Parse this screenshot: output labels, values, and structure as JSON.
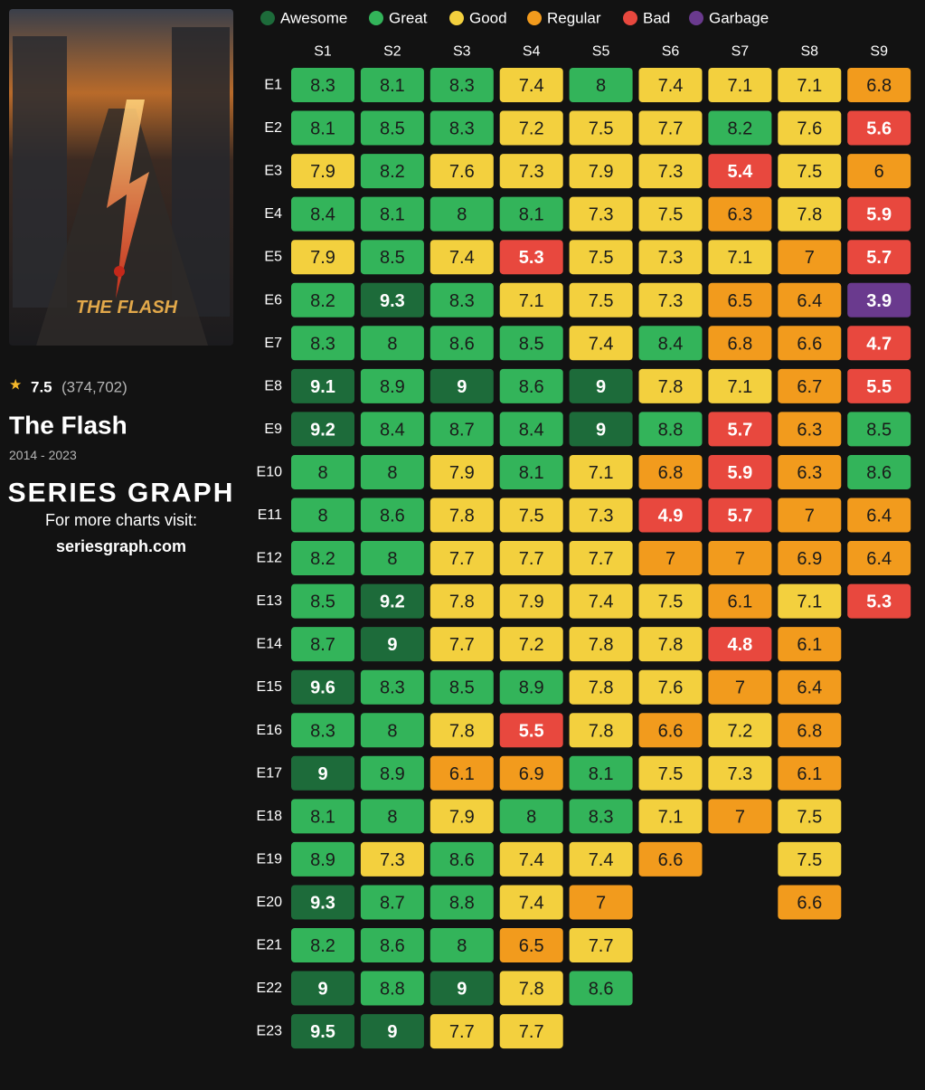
{
  "show": {
    "rating": 7.5,
    "votes": "(374,702)",
    "title": "The Flash",
    "years": "2014 - 2023",
    "poster_text": "THE FLASH"
  },
  "brand": {
    "logo": "SERIES GRAPH",
    "tagline": "For more charts visit:",
    "url": "seriesgraph.com"
  },
  "chart_data": {
    "type": "heatmap",
    "legend": [
      {
        "name": "Awesome",
        "color": "#1d6b3a",
        "text_color": "#ffffff"
      },
      {
        "name": "Great",
        "color": "#33b45a",
        "text_color": "#1a1a1a"
      },
      {
        "name": "Good",
        "color": "#f3d03e",
        "text_color": "#1a1a1a"
      },
      {
        "name": "Regular",
        "color": "#f29b1d",
        "text_color": "#1a1a1a"
      },
      {
        "name": "Bad",
        "color": "#e8483e",
        "text_color": "#ffffff"
      },
      {
        "name": "Garbage",
        "color": "#6a3a8e",
        "text_color": "#ffffff"
      }
    ],
    "rows": [
      "E1",
      "E2",
      "E3",
      "E4",
      "E5",
      "E6",
      "E7",
      "E8",
      "E9",
      "E10",
      "E11",
      "E12",
      "E13",
      "E14",
      "E15",
      "E16",
      "E17",
      "E18",
      "E19",
      "E20",
      "E21",
      "E22",
      "E23"
    ],
    "series": [
      {
        "name": "S1",
        "values": [
          8.3,
          8.1,
          7.9,
          8.4,
          7.9,
          8.2,
          8.3,
          9.1,
          9.2,
          8.0,
          8.0,
          8.2,
          8.5,
          8.7,
          9.6,
          8.3,
          9.0,
          8.1,
          8.9,
          9.3,
          8.2,
          9.0,
          9.5
        ],
        "color_index": [
          1,
          1,
          2,
          1,
          2,
          1,
          1,
          0,
          0,
          1,
          1,
          1,
          1,
          1,
          0,
          1,
          0,
          1,
          1,
          0,
          1,
          0,
          0
        ]
      },
      {
        "name": "S2",
        "values": [
          8.1,
          8.5,
          8.2,
          8.1,
          8.5,
          9.3,
          8.0,
          8.9,
          8.4,
          8.0,
          8.6,
          8.0,
          9.2,
          9.0,
          8.3,
          8.0,
          8.9,
          8.0,
          7.3,
          8.7,
          8.6,
          8.8,
          9.0
        ],
        "color_index": [
          1,
          1,
          1,
          1,
          1,
          0,
          1,
          1,
          1,
          1,
          1,
          1,
          0,
          0,
          1,
          1,
          1,
          1,
          2,
          1,
          1,
          1,
          0
        ]
      },
      {
        "name": "S3",
        "values": [
          8.3,
          8.3,
          7.6,
          8.0,
          7.4,
          8.3,
          8.6,
          9.0,
          8.7,
          7.9,
          7.8,
          7.7,
          7.8,
          7.7,
          8.5,
          7.8,
          6.1,
          7.9,
          8.6,
          8.8,
          8.0,
          9.0,
          7.7
        ],
        "color_index": [
          1,
          1,
          2,
          1,
          2,
          1,
          1,
          0,
          1,
          2,
          2,
          2,
          2,
          2,
          1,
          2,
          3,
          2,
          1,
          1,
          1,
          0,
          2
        ]
      },
      {
        "name": "S4",
        "values": [
          7.4,
          7.2,
          7.3,
          8.1,
          5.3,
          7.1,
          8.5,
          8.6,
          8.4,
          8.1,
          7.5,
          7.7,
          7.9,
          7.2,
          8.9,
          5.5,
          6.9,
          8.0,
          7.4,
          7.4,
          6.5,
          7.8,
          7.7
        ],
        "color_index": [
          2,
          2,
          2,
          1,
          4,
          2,
          1,
          1,
          1,
          1,
          2,
          2,
          2,
          2,
          1,
          4,
          3,
          1,
          2,
          2,
          3,
          2,
          2
        ]
      },
      {
        "name": "S5",
        "values": [
          8.0,
          7.5,
          7.9,
          7.3,
          7.5,
          7.5,
          7.4,
          9.0,
          9.0,
          7.1,
          7.3,
          7.7,
          7.4,
          7.8,
          7.8,
          7.8,
          8.1,
          8.3,
          7.4,
          7.0,
          7.7,
          8.6
        ],
        "color_index": [
          1,
          2,
          2,
          2,
          2,
          2,
          2,
          0,
          0,
          2,
          2,
          2,
          2,
          2,
          2,
          2,
          1,
          1,
          2,
          3,
          2,
          1
        ]
      },
      {
        "name": "S6",
        "values": [
          7.4,
          7.7,
          7.3,
          7.5,
          7.3,
          7.3,
          8.4,
          7.8,
          8.8,
          6.8,
          4.9,
          7.0,
          7.5,
          7.8,
          7.6,
          6.6,
          7.5,
          7.1,
          6.6
        ],
        "color_index": [
          2,
          2,
          2,
          2,
          2,
          2,
          1,
          2,
          1,
          3,
          4,
          3,
          2,
          2,
          2,
          3,
          2,
          2,
          3
        ]
      },
      {
        "name": "S7",
        "values": [
          7.1,
          8.2,
          5.4,
          6.3,
          7.1,
          6.5,
          6.8,
          7.1,
          5.7,
          5.9,
          5.7,
          7.0,
          6.1,
          4.8,
          7.0,
          7.2,
          7.3,
          7.0
        ],
        "color_index": [
          2,
          1,
          4,
          3,
          2,
          3,
          3,
          2,
          4,
          4,
          4,
          3,
          3,
          4,
          3,
          2,
          2,
          3
        ]
      },
      {
        "name": "S8",
        "values": [
          7.1,
          7.6,
          7.5,
          7.8,
          7.0,
          6.4,
          6.6,
          6.7,
          6.3,
          6.3,
          7.0,
          6.9,
          7.1,
          6.1,
          6.4,
          6.8,
          6.1,
          7.5,
          7.5,
          6.6
        ],
        "color_index": [
          2,
          2,
          2,
          2,
          3,
          3,
          3,
          3,
          3,
          3,
          3,
          3,
          2,
          3,
          3,
          3,
          3,
          2,
          2,
          3
        ]
      },
      {
        "name": "S9",
        "values": [
          6.8,
          5.6,
          6.0,
          5.9,
          5.7,
          3.9,
          4.7,
          5.5,
          8.5,
          8.6,
          6.4,
          6.4,
          5.3
        ],
        "color_index": [
          3,
          4,
          3,
          4,
          4,
          5,
          4,
          4,
          1,
          1,
          3,
          3,
          4
        ]
      }
    ]
  }
}
